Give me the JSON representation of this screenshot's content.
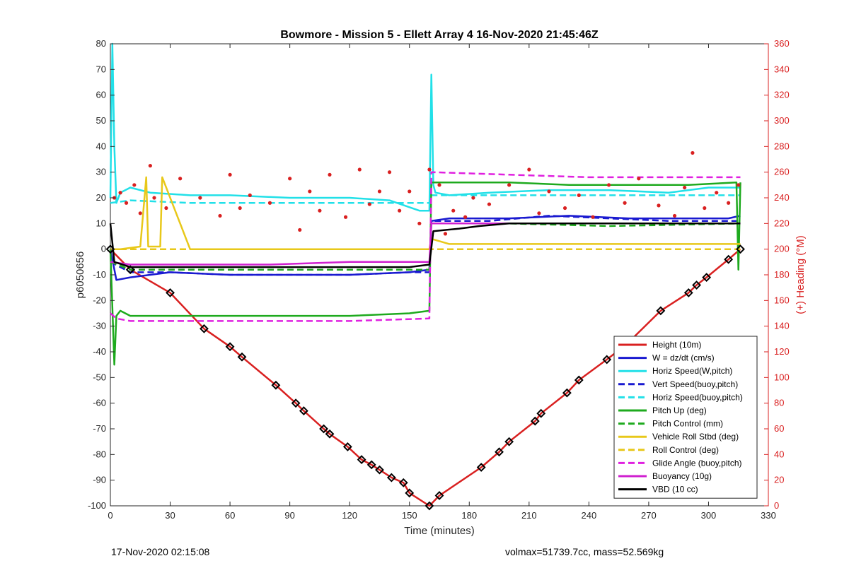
{
  "chart_data": {
    "type": "line",
    "title": "Bowmore - Mission 5 - Ellett Array 4 16-Nov-2020 21:45:46Z",
    "xlabel": "Time (minutes)",
    "ylabel": "p6050656",
    "y2label": "(+) Heading (°M)",
    "xlim": [
      0,
      330
    ],
    "ylim": [
      -100,
      80
    ],
    "y2lim": [
      0,
      360
    ],
    "xticks": [
      0,
      30,
      60,
      90,
      120,
      150,
      180,
      210,
      240,
      270,
      300,
      330
    ],
    "yticks": [
      -100,
      -90,
      -80,
      -70,
      -60,
      -50,
      -40,
      -30,
      -20,
      -10,
      0,
      10,
      20,
      30,
      40,
      50,
      60,
      70,
      80
    ],
    "y2ticks": [
      0,
      20,
      40,
      60,
      80,
      100,
      120,
      140,
      160,
      180,
      200,
      220,
      240,
      260,
      280,
      300,
      320,
      340,
      360
    ],
    "grid": false,
    "legend_position": "bottom-right",
    "series": [
      {
        "name": "Height (10m)",
        "color": "#d92020",
        "style": "solid",
        "x": [
          0,
          10,
          30,
          47,
          60,
          66,
          83,
          93,
          97,
          107,
          110,
          119,
          126,
          131,
          135,
          141,
          147,
          150,
          160,
          165,
          186,
          195,
          200,
          213,
          216,
          229,
          235,
          249,
          259,
          276,
          290,
          294,
          299,
          310,
          316
        ],
        "y": [
          0,
          -8,
          -17,
          -31,
          -38,
          -42,
          -53,
          -60,
          -63,
          -70,
          -72,
          -77,
          -82,
          -84,
          -86,
          -89,
          -91,
          -95,
          -100,
          -96,
          -85,
          -79,
          -75,
          -67,
          -64,
          -56,
          -51,
          -43,
          -37,
          -24,
          -17,
          -14,
          -11,
          -4,
          0
        ]
      },
      {
        "name": "W = dz/dt (cm/s)",
        "color": "#1a1ad0",
        "style": "solid",
        "x": [
          0,
          3,
          10,
          30,
          60,
          90,
          120,
          150,
          160,
          161,
          170,
          200,
          230,
          260,
          290,
          310,
          316
        ],
        "y": [
          0,
          -12,
          -11,
          -9,
          -10,
          -10,
          -10,
          -9,
          -8,
          11,
          12,
          12,
          13,
          12,
          12,
          12,
          13
        ]
      },
      {
        "name": "Horiz Speed(W,pitch)",
        "color": "#22e0e8",
        "style": "solid",
        "x": [
          0,
          1,
          2,
          3,
          5,
          10,
          20,
          40,
          60,
          90,
          120,
          140,
          155,
          160,
          161,
          162,
          163,
          170,
          190,
          220,
          250,
          280,
          300,
          316
        ],
        "y": [
          20,
          80,
          40,
          18,
          22,
          24,
          22,
          21,
          21,
          20,
          20,
          19,
          15,
          15,
          68,
          25,
          22,
          21,
          22,
          23,
          23,
          22,
          24,
          24
        ]
      },
      {
        "name": "Vert Speed(buoy,pitch)",
        "color": "#1a1ad0",
        "style": "dashed",
        "x": [
          0,
          10,
          30,
          60,
          90,
          120,
          150,
          160,
          161,
          190,
          220,
          250,
          280,
          316
        ],
        "y": [
          -5,
          -9,
          -9,
          -10,
          -10,
          -10,
          -9,
          -9,
          11,
          11,
          13,
          12,
          11,
          11
        ]
      },
      {
        "name": "Horiz Speed(buoy,pitch)",
        "color": "#22e0e8",
        "style": "dashed",
        "x": [
          0,
          10,
          40,
          80,
          120,
          160,
          161,
          200,
          240,
          280,
          316
        ],
        "y": [
          18,
          19,
          18,
          18,
          18,
          18,
          21,
          21,
          21,
          21,
          21
        ]
      },
      {
        "name": "Pitch Up (deg)",
        "color": "#1eaa1e",
        "style": "solid",
        "x": [
          0,
          2,
          3,
          5,
          10,
          30,
          60,
          90,
          120,
          150,
          160,
          161,
          170,
          200,
          230,
          260,
          290,
          314,
          315,
          316
        ],
        "y": [
          0,
          -45,
          -26,
          -24,
          -26,
          -26,
          -26,
          -26,
          -26,
          -25,
          -24,
          26,
          26,
          26,
          25,
          25,
          25,
          26,
          -8,
          26
        ]
      },
      {
        "name": "Pitch Control (mm)",
        "color": "#1eaa1e",
        "style": "dashed",
        "x": [
          0,
          10,
          60,
          120,
          160,
          161,
          200,
          250,
          316
        ],
        "y": [
          -5,
          -8,
          -8,
          -8,
          -8,
          10,
          10,
          9,
          10
        ]
      },
      {
        "name": "Vehicle Roll Stbd (deg)",
        "color": "#e8c81a",
        "style": "solid",
        "x": [
          0,
          5,
          15,
          18,
          19,
          25,
          26,
          40,
          50,
          60,
          80,
          100,
          120,
          140,
          160,
          161,
          170,
          200,
          230,
          260,
          290,
          316
        ],
        "y": [
          0,
          0,
          1,
          28,
          1,
          1,
          28,
          0,
          0,
          0,
          0,
          0,
          0,
          0,
          0,
          4,
          2,
          2,
          2,
          2,
          2,
          2
        ]
      },
      {
        "name": "Roll Control (deg)",
        "color": "#e8c81a",
        "style": "dashed",
        "x": [
          0,
          20,
          60,
          100,
          140,
          160,
          161,
          200,
          240,
          280,
          316
        ],
        "y": [
          0,
          0,
          0,
          0,
          0,
          0,
          0,
          0,
          0,
          0,
          0
        ]
      },
      {
        "name": "Glide Angle (buoy,pitch)",
        "color": "#e020e0",
        "style": "dashed",
        "x": [
          0,
          3,
          10,
          40,
          80,
          120,
          160,
          161,
          200,
          240,
          280,
          316
        ],
        "y": [
          -25,
          -27,
          -28,
          -28,
          -28,
          -28,
          -27,
          30,
          29,
          28,
          28,
          28
        ]
      },
      {
        "name": "Buoyancy (10g)",
        "color": "#d020d0",
        "style": "solid",
        "x": [
          0,
          10,
          40,
          80,
          120,
          160,
          161,
          200,
          240,
          280,
          316
        ],
        "y": [
          -5,
          -6,
          -6,
          -6,
          -5,
          -5,
          10,
          10,
          10,
          10,
          10
        ]
      },
      {
        "name": "VBD (10 cc)",
        "color": "#000000",
        "style": "solid",
        "x": [
          0,
          2,
          10,
          30,
          60,
          90,
          120,
          150,
          160,
          162,
          175,
          185,
          200,
          230,
          260,
          290,
          316
        ],
        "y": [
          10,
          -5,
          -7,
          -7,
          -7,
          -7,
          -7,
          -7,
          -6,
          7,
          8,
          9,
          10,
          10,
          10,
          10,
          10
        ]
      }
    ],
    "heading": {
      "name": "Heading",
      "color": "#d92020",
      "axis": "right",
      "x": [
        2,
        5,
        8,
        12,
        15,
        20,
        22,
        28,
        35,
        45,
        55,
        60,
        65,
        70,
        80,
        90,
        95,
        100,
        105,
        110,
        118,
        125,
        130,
        135,
        140,
        145,
        150,
        155,
        160,
        165,
        168,
        172,
        178,
        182,
        190,
        200,
        210,
        215,
        220,
        228,
        235,
        242,
        250,
        258,
        265,
        275,
        283,
        288,
        292,
        298,
        304,
        310,
        315
      ],
      "y": [
        240,
        244,
        236,
        250,
        228,
        265,
        240,
        232,
        255,
        240,
        226,
        258,
        232,
        242,
        236,
        255,
        215,
        245,
        230,
        258,
        225,
        262,
        235,
        245,
        260,
        230,
        245,
        220,
        262,
        250,
        212,
        230,
        225,
        240,
        235,
        250,
        262,
        228,
        245,
        232,
        242,
        225,
        250,
        236,
        255,
        234,
        226,
        248,
        275,
        232,
        244,
        236,
        250
      ]
    }
  },
  "footer": {
    "timestamp": "17-Nov-2020 02:15:08",
    "stats": "volmax=51739.7cc, mass=52.569kg"
  }
}
